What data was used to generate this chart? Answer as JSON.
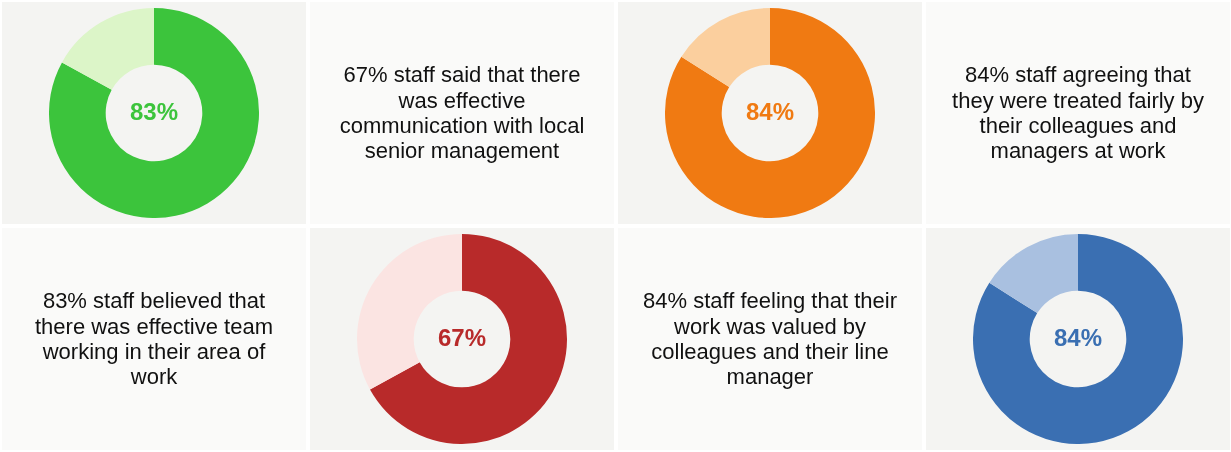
{
  "chart_data": [
    {
      "type": "donut",
      "categories": [
        null,
        null
      ],
      "values": [
        83,
        17
      ],
      "colors": [
        "#3cc43c",
        "#dcf5c8"
      ],
      "value_labels": [
        "83%",
        null
      ]
    },
    {
      "type": "other",
      "title": "67% staff said that there was effective communication with local senior management"
    },
    {
      "type": "donut",
      "categories": [
        null,
        null
      ],
      "values": [
        84,
        16
      ],
      "colors": [
        "#f07a12",
        "#fbcf9e"
      ],
      "value_labels": [
        "84%",
        null
      ]
    },
    {
      "type": "other",
      "title": "84% staff agreeing that they were treated fairly by their colleagues and managers at work"
    },
    {
      "type": "other",
      "title": "83% staff believed that there was effective team working in their area of work"
    },
    {
      "type": "donut",
      "categories": [
        null,
        null
      ],
      "values": [
        67,
        33
      ],
      "colors": [
        "#b82a2a",
        "#fbe4e2"
      ],
      "value_labels": [
        "67%",
        null
      ]
    },
    {
      "type": "other",
      "title": "84% staff feeling that their work was valued by colleagues and their line manager"
    },
    {
      "type": "donut",
      "categories": [
        null,
        null
      ],
      "values": [
        84,
        16
      ],
      "colors": [
        "#3a6fb2",
        "#a9c0e0"
      ],
      "value_labels": [
        "84%",
        null
      ]
    }
  ]
}
